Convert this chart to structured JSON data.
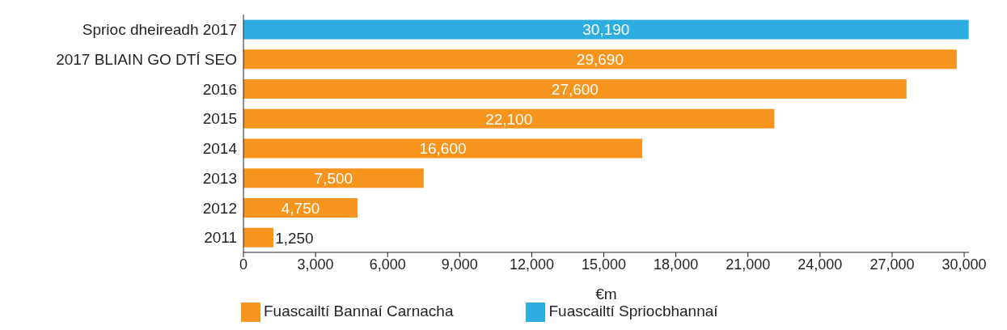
{
  "chart_data": {
    "type": "bar",
    "orientation": "horizontal",
    "stacked": true,
    "categories": [
      "Sprioc dheireadh 2017",
      "2017 BLIAIN GO DTÍ SEO",
      "2016",
      "2015",
      "2014",
      "2013",
      "2012",
      "2011"
    ],
    "series": [
      {
        "name": "Fuascailtí Bannaí Carnacha",
        "color": "#f7941d",
        "values": [
          null,
          29690,
          27600,
          22100,
          16600,
          7500,
          4750,
          1250
        ],
        "value_labels": [
          null,
          "29,690",
          "27,600",
          "22,100",
          "16,600",
          "7,500",
          "4,750",
          "1,250"
        ]
      },
      {
        "name": "Fuascailtí Spriocbhannaí",
        "color": "#2eaee0",
        "values": [
          30190,
          null,
          null,
          null,
          null,
          null,
          null,
          null
        ],
        "value_labels": [
          "30,190",
          null,
          null,
          null,
          null,
          null,
          null,
          null
        ]
      }
    ],
    "xlim": [
      0,
      30200
    ],
    "xticks": [
      0,
      {
        "value": 3000,
        "label": "3,000"
      },
      {
        "value": 6000,
        "label": "6,000"
      },
      {
        "value": 9000,
        "label": "9,000"
      },
      {
        "value": 12000,
        "label": "12,000"
      },
      {
        "value": 15000,
        "label": "15,000"
      },
      {
        "value": 18000,
        "label": "18,000"
      },
      {
        "value": 21000,
        "label": "21,000"
      },
      {
        "value": 24000,
        "label": "24,000"
      },
      {
        "value": 27000,
        "label": "27,000"
      },
      {
        "value": 30000,
        "label": "30,000"
      }
    ],
    "xlabel": "€m",
    "legend": "bottom",
    "grid": false
  }
}
